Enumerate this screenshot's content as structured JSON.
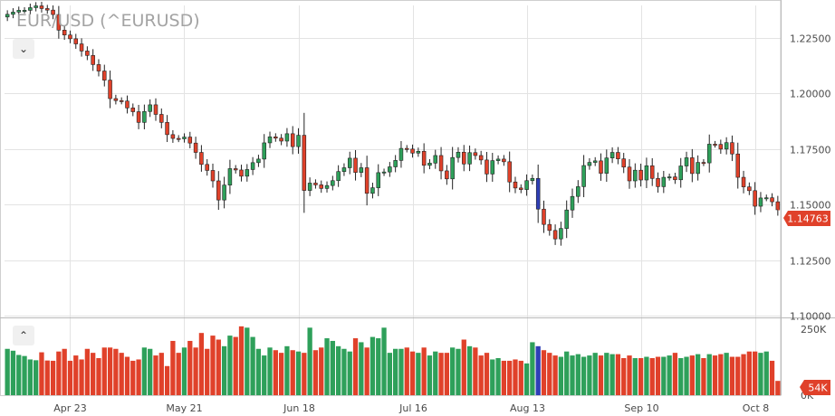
{
  "title": "EUR/USD (^EURUSD)",
  "controls": {
    "collapse_main": "⌄",
    "expand_volume": "⌃"
  },
  "last_price": {
    "label": "1.14763",
    "value": 1.14763,
    "color": "#e0412a"
  },
  "last_volume": {
    "label": "54K",
    "color": "#e0412a"
  },
  "colors": {
    "up": "#2ea05a",
    "down": "#e0412a",
    "highlight": "#2f3fb7",
    "grid": "#e3e3e3",
    "axis_text": "#4a4a4a"
  },
  "chart_data": {
    "type": "candlestick",
    "price_axis": {
      "ticks": [
        1.225,
        1.2,
        1.175,
        1.15,
        1.125,
        1.1
      ],
      "tick_labels": [
        "1.22500",
        "1.20000",
        "1.17500",
        "1.15000",
        "1.12500",
        "1.10000"
      ],
      "range": [
        1.1,
        1.2395
      ]
    },
    "volume_axis": {
      "ticks": [
        250000,
        0
      ],
      "tick_labels": [
        "250K",
        "0K"
      ],
      "range": [
        0,
        280000
      ]
    },
    "x_axis": {
      "tick_labels": [
        "Apr 23",
        "May 21",
        "Jun 18",
        "Jul 16",
        "Aug 13",
        "Sep 10",
        "Oct 8"
      ],
      "tick_index": [
        11,
        31,
        51,
        71,
        91,
        111,
        131
      ]
    },
    "highlight_index": 93,
    "close": [
      1.2355,
      1.2365,
      1.2373,
      1.2373,
      1.2385,
      1.2393,
      1.2381,
      1.2374,
      1.2354,
      1.2284,
      1.2262,
      1.2245,
      1.2222,
      1.219,
      1.217,
      1.2129,
      1.21,
      1.2059,
      1.1976,
      1.1967,
      1.1965,
      1.1934,
      1.1917,
      1.1869,
      1.1918,
      1.1948,
      1.1905,
      1.1869,
      1.1814,
      1.1797,
      1.1795,
      1.1803,
      1.1776,
      1.1734,
      1.168,
      1.1653,
      1.1606,
      1.152,
      1.1587,
      1.1661,
      1.1655,
      1.1627,
      1.1657,
      1.1688,
      1.1704,
      1.1777,
      1.1804,
      1.1798,
      1.1785,
      1.1818,
      1.176,
      1.1811,
      1.1563,
      1.1596,
      1.1588,
      1.1572,
      1.1585,
      1.1607,
      1.1648,
      1.1665,
      1.1708,
      1.1644,
      1.1665,
      1.155,
      1.1575,
      1.1643,
      1.1646,
      1.1669,
      1.1698,
      1.1752,
      1.1749,
      1.1731,
      1.1739,
      1.1676,
      1.1686,
      1.172,
      1.1651,
      1.1615,
      1.1711,
      1.1735,
      1.1682,
      1.1733,
      1.172,
      1.17,
      1.1637,
      1.1697,
      1.1704,
      1.1692,
      1.1601,
      1.1574,
      1.1567,
      1.1607,
      1.1617,
      1.1479,
      1.141,
      1.1383,
      1.1345,
      1.1392,
      1.1475,
      1.1536,
      1.158,
      1.1675,
      1.1689,
      1.1696,
      1.164,
      1.1709,
      1.1734,
      1.1705,
      1.1668,
      1.1606,
      1.1654,
      1.161,
      1.1674,
      1.1617,
      1.158,
      1.1622,
      1.1624,
      1.1611,
      1.1673,
      1.171,
      1.1639,
      1.1689,
      1.1687,
      1.1771,
      1.177,
      1.1749,
      1.1778,
      1.1727,
      1.1622,
      1.1579,
      1.1562,
      1.1492,
      1.1529,
      1.153,
      1.1512,
      1.1476
    ],
    "volume": [
      175000,
      168000,
      152000,
      148000,
      135000,
      132000,
      162000,
      131000,
      130000,
      165000,
      175000,
      130000,
      150000,
      135000,
      175000,
      160000,
      140000,
      180000,
      180000,
      175000,
      160000,
      145000,
      130000,
      135000,
      180000,
      175000,
      150000,
      160000,
      110000,
      205000,
      160000,
      180000,
      205000,
      180000,
      235000,
      175000,
      225000,
      210000,
      185000,
      225000,
      220000,
      260000,
      255000,
      220000,
      175000,
      150000,
      180000,
      170000,
      160000,
      185000,
      170000,
      165000,
      160000,
      255000,
      170000,
      180000,
      215000,
      205000,
      185000,
      175000,
      165000,
      215000,
      200000,
      180000,
      220000,
      215000,
      255000,
      160000,
      175000,
      175000,
      180000,
      165000,
      160000,
      180000,
      150000,
      165000,
      160000,
      160000,
      180000,
      175000,
      210000,
      185000,
      180000,
      150000,
      160000,
      135000,
      140000,
      130000,
      130000,
      135000,
      130000,
      120000,
      200000,
      185000,
      170000,
      160000,
      150000,
      145000,
      165000,
      150000,
      155000,
      145000,
      150000,
      160000,
      150000,
      160000,
      155000,
      155000,
      140000,
      150000,
      140000,
      140000,
      145000,
      140000,
      145000,
      145000,
      150000,
      160000,
      140000,
      145000,
      150000,
      155000,
      140000,
      155000,
      150000,
      155000,
      160000,
      145000,
      145000,
      155000,
      165000,
      165000,
      160000,
      165000,
      130000,
      54000
    ]
  }
}
